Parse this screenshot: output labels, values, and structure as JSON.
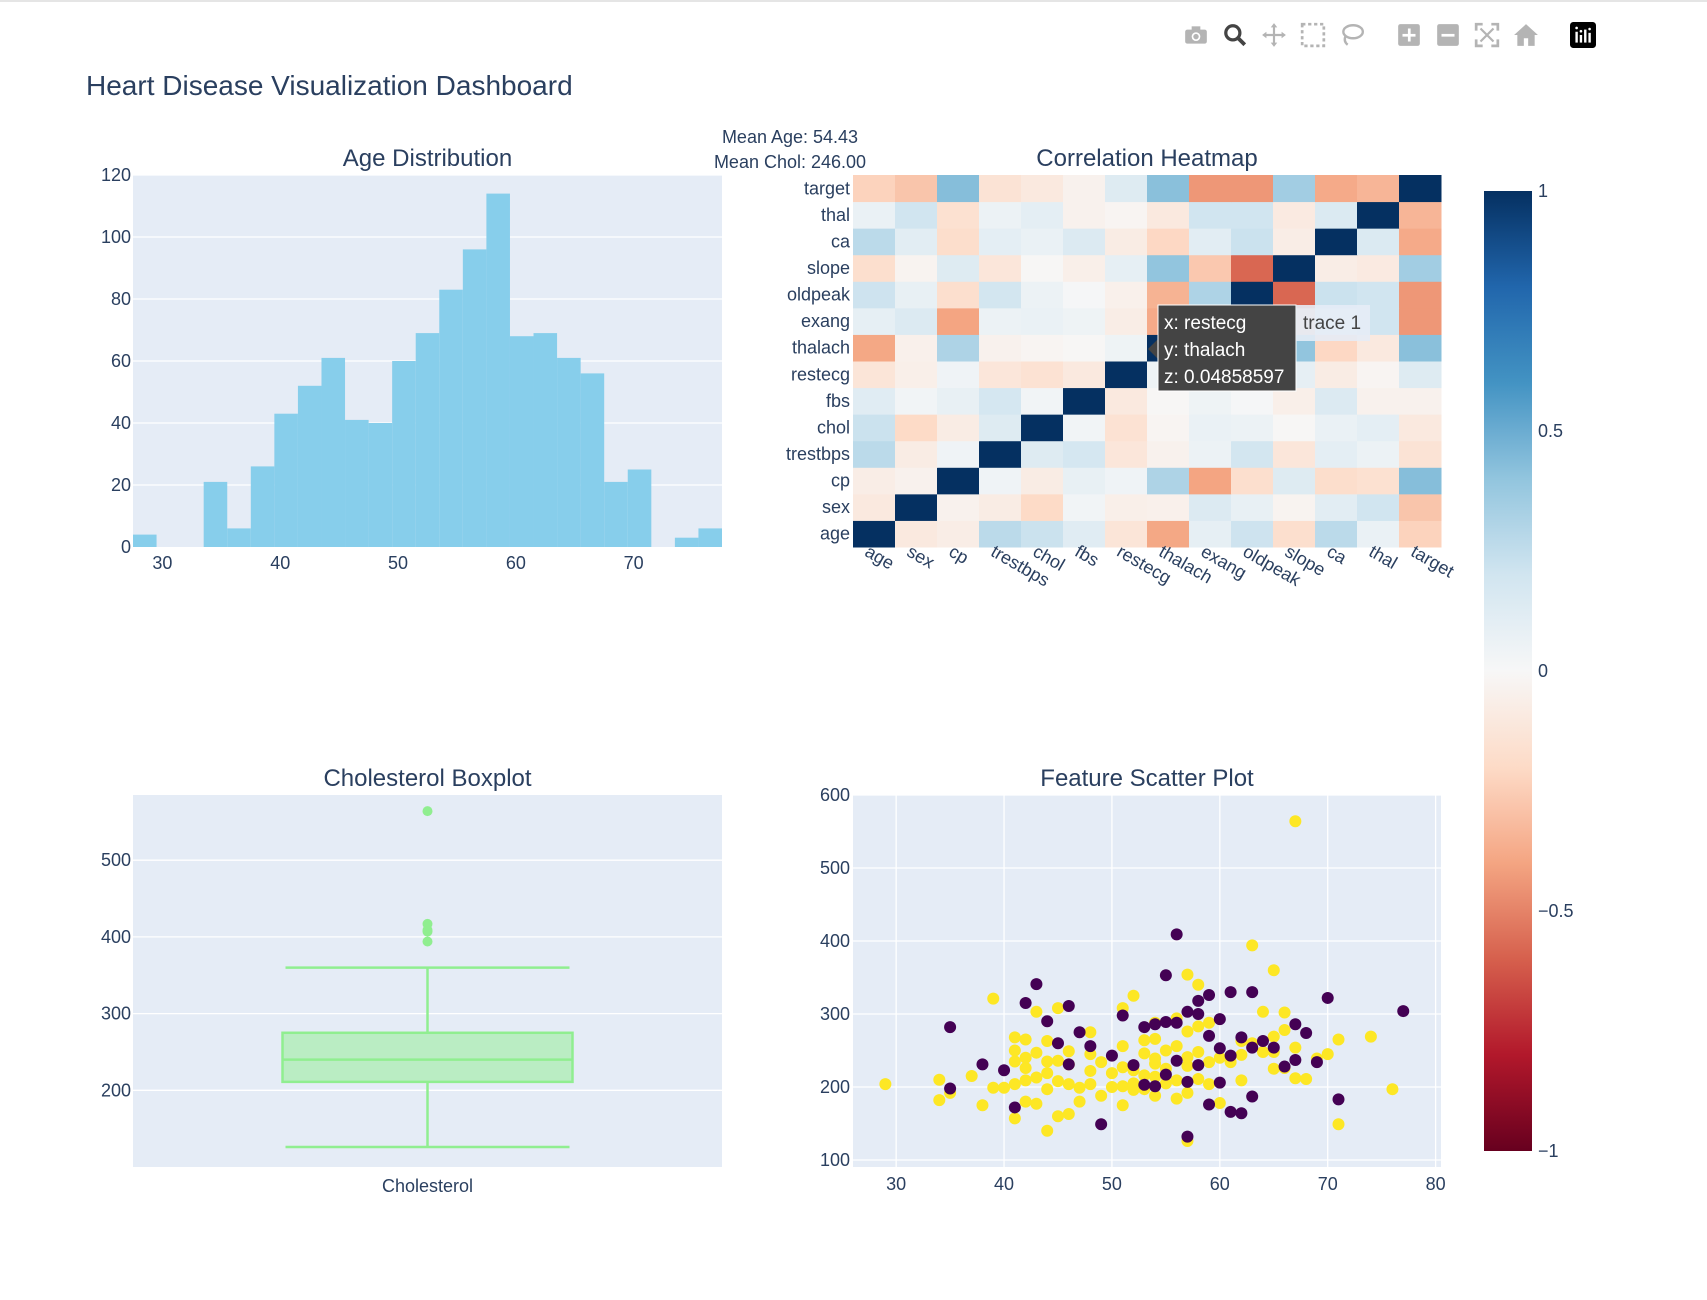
{
  "page_title": "Heart Disease Visualization Dashboard",
  "modebar": {
    "icons": [
      "camera-icon",
      "zoom-icon",
      "pan-icon",
      "box-select-icon",
      "lasso-icon",
      "zoom-in-icon",
      "zoom-out-icon",
      "autoscale-icon",
      "reset-axes-icon",
      "plotly-logo-icon"
    ]
  },
  "annotation": {
    "mean_age": "Mean Age: 54.43",
    "mean_chol": "Mean Chol: 246.00"
  },
  "colors": {
    "plot_bg": "#e5ecf6",
    "histogram": "#87ceeb",
    "boxplot": "#90ee90",
    "scatter_pos": "#fde725",
    "scatter_neg": "#440154",
    "tooltip_bg": "#444444"
  },
  "chart_data": [
    {
      "type": "histogram",
      "title": "Age Distribution",
      "xlim": [
        27.5,
        77.5
      ],
      "ylim": [
        0,
        120
      ],
      "x_ticks": [
        30,
        40,
        50,
        60,
        70
      ],
      "y_ticks": [
        0,
        20,
        40,
        60,
        80,
        100,
        120
      ],
      "bin_width": 2,
      "bins": [
        {
          "x0": 27.5,
          "x1": 29.5,
          "count": 4
        },
        {
          "x0": 29.5,
          "x1": 31.5,
          "count": 0
        },
        {
          "x0": 31.5,
          "x1": 33.5,
          "count": 0
        },
        {
          "x0": 33.5,
          "x1": 35.5,
          "count": 21
        },
        {
          "x0": 35.5,
          "x1": 37.5,
          "count": 6
        },
        {
          "x0": 37.5,
          "x1": 39.5,
          "count": 26
        },
        {
          "x0": 39.5,
          "x1": 41.5,
          "count": 43
        },
        {
          "x0": 41.5,
          "x1": 43.5,
          "count": 52
        },
        {
          "x0": 43.5,
          "x1": 45.5,
          "count": 61
        },
        {
          "x0": 45.5,
          "x1": 47.5,
          "count": 41
        },
        {
          "x0": 47.5,
          "x1": 49.5,
          "count": 40
        },
        {
          "x0": 49.5,
          "x1": 51.5,
          "count": 60
        },
        {
          "x0": 51.5,
          "x1": 53.5,
          "count": 69
        },
        {
          "x0": 53.5,
          "x1": 55.5,
          "count": 83
        },
        {
          "x0": 55.5,
          "x1": 57.5,
          "count": 96
        },
        {
          "x0": 57.5,
          "x1": 59.5,
          "count": 114
        },
        {
          "x0": 59.5,
          "x1": 61.5,
          "count": 68
        },
        {
          "x0": 61.5,
          "x1": 63.5,
          "count": 69
        },
        {
          "x0": 63.5,
          "x1": 65.5,
          "count": 61
        },
        {
          "x0": 65.5,
          "x1": 67.5,
          "count": 56
        },
        {
          "x0": 67.5,
          "x1": 69.5,
          "count": 21
        },
        {
          "x0": 69.5,
          "x1": 71.5,
          "count": 25
        },
        {
          "x0": 71.5,
          "x1": 73.5,
          "count": 0
        },
        {
          "x0": 73.5,
          "x1": 75.5,
          "count": 3
        },
        {
          "x0": 75.5,
          "x1": 77.5,
          "count": 6
        }
      ]
    },
    {
      "type": "heatmap",
      "title": "Correlation Heatmap",
      "labels": [
        "age",
        "sex",
        "cp",
        "trestbps",
        "chol",
        "fbs",
        "restecg",
        "thalach",
        "exang",
        "oldpeak",
        "slope",
        "ca",
        "thal",
        "target"
      ],
      "matrix": [
        [
          1.0,
          -0.1,
          -0.07,
          0.27,
          0.22,
          0.12,
          -0.13,
          -0.39,
          0.09,
          0.21,
          -0.17,
          0.27,
          0.07,
          -0.23
        ],
        [
          -0.1,
          1.0,
          -0.04,
          -0.08,
          -0.2,
          0.03,
          -0.06,
          -0.05,
          0.14,
          0.08,
          -0.03,
          0.11,
          0.2,
          -0.28
        ],
        [
          -0.07,
          -0.04,
          1.0,
          0.04,
          -0.08,
          0.08,
          0.04,
          0.31,
          -0.4,
          -0.17,
          0.13,
          -0.18,
          -0.16,
          0.43
        ],
        [
          0.27,
          -0.08,
          0.04,
          1.0,
          0.13,
          0.18,
          -0.12,
          -0.04,
          0.06,
          0.19,
          -0.12,
          0.1,
          0.06,
          -0.14
        ],
        [
          0.22,
          -0.2,
          -0.08,
          0.13,
          1.0,
          0.03,
          -0.15,
          -0.02,
          0.07,
          0.06,
          -0.01,
          0.07,
          0.1,
          -0.1
        ],
        [
          0.12,
          0.03,
          0.08,
          0.18,
          0.03,
          1.0,
          -0.1,
          -0.01,
          0.05,
          0.01,
          -0.06,
          0.14,
          -0.04,
          -0.04
        ],
        [
          -0.13,
          -0.06,
          0.04,
          -0.12,
          -0.15,
          -0.1,
          1.0,
          0.05,
          -0.07,
          -0.05,
          0.09,
          -0.08,
          -0.02,
          0.13
        ],
        [
          -0.39,
          -0.05,
          0.31,
          -0.04,
          -0.02,
          -0.01,
          0.05,
          1.0,
          -0.38,
          -0.35,
          0.4,
          -0.21,
          -0.1,
          0.42
        ],
        [
          0.09,
          0.14,
          -0.4,
          0.06,
          0.07,
          0.05,
          -0.07,
          -0.38,
          1.0,
          0.31,
          -0.27,
          0.11,
          0.2,
          -0.44
        ],
        [
          0.21,
          0.08,
          -0.17,
          0.19,
          0.06,
          0.01,
          -0.05,
          -0.35,
          0.31,
          1.0,
          -0.58,
          0.22,
          0.2,
          -0.44
        ],
        [
          -0.17,
          -0.03,
          0.13,
          -0.12,
          -0.01,
          -0.06,
          0.09,
          0.4,
          -0.27,
          -0.58,
          1.0,
          -0.07,
          -0.09,
          0.35
        ],
        [
          0.27,
          0.11,
          -0.18,
          0.1,
          0.07,
          0.14,
          -0.08,
          -0.21,
          0.11,
          0.22,
          -0.07,
          1.0,
          0.15,
          -0.38
        ],
        [
          0.07,
          0.2,
          -0.16,
          0.06,
          0.1,
          -0.04,
          -0.02,
          -0.1,
          0.2,
          0.2,
          -0.09,
          0.15,
          1.0,
          -0.34
        ],
        [
          -0.23,
          -0.28,
          0.43,
          -0.14,
          -0.1,
          -0.04,
          0.13,
          0.42,
          -0.44,
          -0.44,
          0.35,
          -0.38,
          -0.34,
          1.0
        ]
      ],
      "colorbar": {
        "min": -1,
        "max": 1,
        "ticks": [
          "1",
          "0.5",
          "0",
          "−0.5",
          "−1"
        ]
      },
      "tooltip": {
        "x": "x: restecg",
        "y": "y: thalach",
        "z": "z: 0.04858597",
        "trace": "trace 1"
      }
    },
    {
      "type": "box",
      "title": "Cholesterol Boxplot",
      "category": "Cholesterol",
      "ylim": [
        100,
        585
      ],
      "y_ticks": [
        200,
        300,
        400,
        500
      ],
      "min": 126,
      "q1": 211,
      "median": 240,
      "q3": 275,
      "max": 360,
      "outliers": [
        394,
        407,
        409,
        417,
        564
      ]
    },
    {
      "type": "scatter",
      "title": "Feature Scatter Plot",
      "xlim": [
        26,
        80.5
      ],
      "ylim": [
        100,
        600
      ],
      "x_ticks": [
        30,
        40,
        50,
        60,
        70,
        80
      ],
      "y_ticks": [
        100,
        200,
        300,
        400,
        500,
        600
      ],
      "series": [
        {
          "values": [
            [
              29,
              204
            ],
            [
              34,
              182
            ],
            [
              34,
              210
            ],
            [
              35,
              192
            ],
            [
              37,
              215
            ],
            [
              38,
              175
            ],
            [
              39,
              199
            ],
            [
              39,
              321
            ],
            [
              40,
              199
            ],
            [
              41,
              157
            ],
            [
              41,
              204
            ],
            [
              41,
              235
            ],
            [
              41,
              250
            ],
            [
              41,
              268
            ],
            [
              42,
              180
            ],
            [
              42,
              209
            ],
            [
              42,
              226
            ],
            [
              42,
              240
            ],
            [
              42,
              265
            ],
            [
              43,
              177
            ],
            [
              43,
              213
            ],
            [
              43,
              247
            ],
            [
              43,
              303
            ],
            [
              44,
              140
            ],
            [
              44,
              197
            ],
            [
              44,
              219
            ],
            [
              44,
              235
            ],
            [
              44,
              263
            ],
            [
              45,
              160
            ],
            [
              45,
              208
            ],
            [
              45,
              236
            ],
            [
              45,
              308
            ],
            [
              46,
              163
            ],
            [
              46,
              204
            ],
            [
              46,
              231
            ],
            [
              46,
              249
            ],
            [
              47,
              180
            ],
            [
              47,
              199
            ],
            [
              48,
              204
            ],
            [
              48,
              222
            ],
            [
              48,
              245
            ],
            [
              48,
              275
            ],
            [
              49,
              188
            ],
            [
              49,
              234
            ],
            [
              50,
              200
            ],
            [
              50,
              219
            ],
            [
              51,
              175
            ],
            [
              51,
              201
            ],
            [
              51,
              227
            ],
            [
              51,
              256
            ],
            [
              51,
              308
            ],
            [
              52,
              196
            ],
            [
              52,
              205
            ],
            [
              52,
              223
            ],
            [
              52,
              325
            ],
            [
              53,
              197
            ],
            [
              53,
              216
            ],
            [
              53,
              246
            ],
            [
              53,
              264
            ],
            [
              54,
              188
            ],
            [
              54,
              214
            ],
            [
              54,
              232
            ],
            [
              54,
              239
            ],
            [
              54,
              266
            ],
            [
              54,
              288
            ],
            [
              55,
              205
            ],
            [
              55,
              225
            ],
            [
              55,
              250
            ],
            [
              56,
              184
            ],
            [
              56,
              209
            ],
            [
              56,
              256
            ],
            [
              56,
              294
            ],
            [
              57,
              126
            ],
            [
              57,
              192
            ],
            [
              57,
              229
            ],
            [
              57,
              241
            ],
            [
              57,
              276
            ],
            [
              57,
              354
            ],
            [
              58,
              211
            ],
            [
              58,
              248
            ],
            [
              58,
              283
            ],
            [
              58,
              340
            ],
            [
              59,
              204
            ],
            [
              59,
              234
            ],
            [
              59,
              288
            ],
            [
              60,
              178
            ],
            [
              60,
              240
            ],
            [
              61,
              234
            ],
            [
              62,
              209
            ],
            [
              62,
              244
            ],
            [
              62,
              263
            ],
            [
              63,
              260
            ],
            [
              63,
              394
            ],
            [
              64,
              248
            ],
            [
              64,
              303
            ],
            [
              65,
              225
            ],
            [
              65,
              248
            ],
            [
              65,
              269
            ],
            [
              65,
              360
            ],
            [
              66,
              226
            ],
            [
              66,
              278
            ],
            [
              66,
              302
            ],
            [
              67,
              212
            ],
            [
              67,
              254
            ],
            [
              67,
              564
            ],
            [
              68,
              211
            ],
            [
              69,
              239
            ],
            [
              70,
              245
            ],
            [
              71,
              149
            ],
            [
              71,
              265
            ],
            [
              74,
              269
            ],
            [
              76,
              197
            ]
          ]
        },
        {
          "values": [
            [
              35,
              198
            ],
            [
              35,
              282
            ],
            [
              38,
              231
            ],
            [
              40,
              223
            ],
            [
              41,
              172
            ],
            [
              42,
              315
            ],
            [
              43,
              341
            ],
            [
              44,
              290
            ],
            [
              45,
              260
            ],
            [
              46,
              231
            ],
            [
              46,
              311
            ],
            [
              47,
              275
            ],
            [
              48,
              256
            ],
            [
              49,
              149
            ],
            [
              50,
              243
            ],
            [
              51,
              298
            ],
            [
              52,
              230
            ],
            [
              53,
              203
            ],
            [
              53,
              282
            ],
            [
              54,
              201
            ],
            [
              54,
              286
            ],
            [
              55,
              217
            ],
            [
              55,
              289
            ],
            [
              55,
              353
            ],
            [
              56,
              236
            ],
            [
              56,
              288
            ],
            [
              56,
              409
            ],
            [
              57,
              132
            ],
            [
              57,
              207
            ],
            [
              57,
              303
            ],
            [
              58,
              230
            ],
            [
              58,
              300
            ],
            [
              58,
              318
            ],
            [
              59,
              176
            ],
            [
              59,
              270
            ],
            [
              59,
              326
            ],
            [
              60,
              206
            ],
            [
              60,
              253
            ],
            [
              60,
              293
            ],
            [
              61,
              166
            ],
            [
              61,
              243
            ],
            [
              61,
              330
            ],
            [
              62,
              164
            ],
            [
              62,
              268
            ],
            [
              63,
              187
            ],
            [
              63,
              254
            ],
            [
              63,
              330
            ],
            [
              64,
              263
            ],
            [
              65,
              254
            ],
            [
              66,
              228
            ],
            [
              67,
              237
            ],
            [
              67,
              286
            ],
            [
              68,
              274
            ],
            [
              69,
              234
            ],
            [
              70,
              322
            ],
            [
              71,
              183
            ],
            [
              77,
              304
            ]
          ]
        }
      ]
    }
  ]
}
